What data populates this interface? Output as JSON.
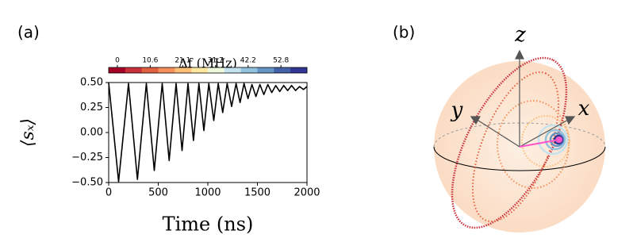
{
  "chart_data": {
    "type": "line",
    "panel_label": "(a)",
    "x_label": "Time (ns)",
    "y_label": "⟨sₓ⟩",
    "x": [
      0,
      100,
      200,
      290,
      380,
      460,
      540,
      610,
      680,
      740,
      800,
      855,
      910,
      960,
      1010,
      1060,
      1105,
      1150,
      1195,
      1240,
      1285,
      1325,
      1365,
      1405,
      1445,
      1485,
      1525,
      1565,
      1605,
      1645,
      1685,
      1725,
      1765,
      1805,
      1845,
      1885,
      1925,
      1965,
      2000
    ],
    "values": [
      0.5,
      -0.49,
      0.49,
      -0.47,
      0.49,
      -0.38,
      0.49,
      -0.28,
      0.49,
      -0.18,
      0.49,
      -0.08,
      0.49,
      0.02,
      0.49,
      0.12,
      0.49,
      0.2,
      0.49,
      0.26,
      0.49,
      0.3,
      0.49,
      0.34,
      0.48,
      0.36,
      0.48,
      0.38,
      0.48,
      0.4,
      0.47,
      0.41,
      0.47,
      0.42,
      0.47,
      0.42,
      0.46,
      0.43,
      0.46
    ],
    "color": "#000000",
    "xlim": [
      0,
      2000
    ],
    "xticks": [
      0,
      500,
      1000,
      1500,
      2000
    ],
    "ylim": [
      -0.5,
      0.5
    ],
    "yticks": [
      {
        "value": -0.5,
        "label": "−0.50"
      },
      {
        "value": -0.25,
        "label": "−0.25"
      },
      {
        "value": 0,
        "label": "0.00"
      },
      {
        "value": 0.25,
        "label": "0.25"
      },
      {
        "value": 0.5,
        "label": "0.50"
      }
    ],
    "colorbar": {
      "label": "Δf (MHz)",
      "lim": [
        -2.8,
        61.2
      ],
      "ticks": [
        0,
        10.6,
        21.1,
        31.7,
        42.2,
        52.8
      ],
      "colors": [
        "#a50026",
        "#c8303a",
        "#e0603f",
        "#f4915a",
        "#fcbf75",
        "#fee8a0",
        "#eef8dc",
        "#c4e3ee",
        "#92c2dd",
        "#6495c5",
        "#4261a8",
        "#313695"
      ]
    }
  },
  "diagram": {
    "panel_label": "(b)",
    "axes": {
      "z": "z",
      "x": "x",
      "y": "y"
    }
  }
}
